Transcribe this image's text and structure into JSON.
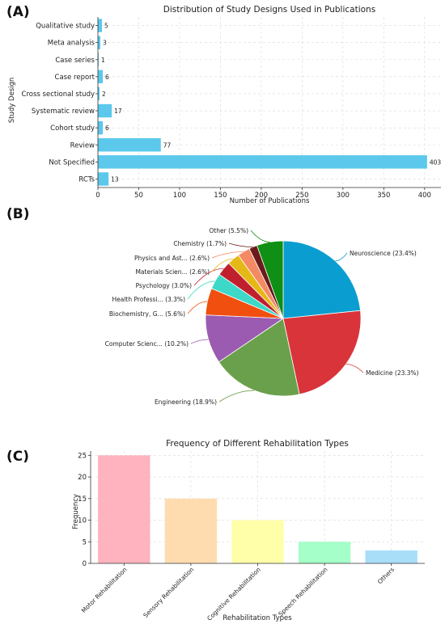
{
  "panels": {
    "a": "(A)",
    "b": "(B)",
    "c": "(C)"
  },
  "chart_data": [
    {
      "type": "bar",
      "orientation": "horizontal",
      "title": "Distribution of Study Designs Used in Publications",
      "xlabel": "Number of Publications",
      "ylabel": "Study Design",
      "categories": [
        "Qualitative study",
        "Meta analysis",
        "Case series",
        "Case report",
        "Cross sectional study",
        "Systematic review",
        "Cohort study",
        "Review",
        "Not Specified",
        "RCTs"
      ],
      "values": [
        5,
        3,
        1,
        6,
        2,
        17,
        6,
        77,
        403,
        13
      ],
      "data_labels": [
        "5",
        "3",
        "1",
        "6",
        "2",
        "17",
        "6",
        "77",
        "403",
        "13"
      ],
      "xlim": [
        0,
        420
      ],
      "xticks": [
        0,
        50,
        100,
        150,
        200,
        250,
        300,
        350,
        400
      ],
      "grid": true,
      "color": "#5bc8ec"
    },
    {
      "type": "pie",
      "labels": [
        "Neuroscience (23.4%)",
        "Medicine (23.3%)",
        "Engineering (18.9%)",
        "Computer Scienc... (10.2%)",
        "Biochemistry, G... (5.6%)",
        "Health Professi... (3.3%)",
        "Psychology (3.0%)",
        "Materials Scien... (2.6%)",
        "Physics and Ast... (2.6%)",
        "Chemistry (1.7%)",
        "Other (5.5%)"
      ],
      "values": [
        23.4,
        23.3,
        18.9,
        10.2,
        5.6,
        3.3,
        3.0,
        2.6,
        2.6,
        1.7,
        5.5
      ],
      "colors": [
        "#0a9ed0",
        "#d9343a",
        "#6aa04b",
        "#9b5bb0",
        "#f04f0f",
        "#3dd8c8",
        "#c0202e",
        "#e5b817",
        "#f48a63",
        "#6b1b1b",
        "#0f8f13"
      ]
    },
    {
      "type": "bar",
      "title": "Frequency of Different Rehabilitation Types",
      "xlabel": "Rehabilitation Types",
      "ylabel": "Frequency",
      "categories": [
        "Motor Rehabilitation",
        "Sensory Rehabilitation",
        "Cognitive Rehabilitation",
        "Speech Rehabilitation",
        "Others"
      ],
      "values": [
        25,
        15,
        10,
        5,
        3
      ],
      "ylim": [
        0,
        26
      ],
      "yticks": [
        0,
        5,
        10,
        15,
        20,
        25
      ],
      "colors": [
        "#ffb3be",
        "#ffdcb0",
        "#ffffaa",
        "#a5ffc8",
        "#a9def9"
      ]
    }
  ]
}
